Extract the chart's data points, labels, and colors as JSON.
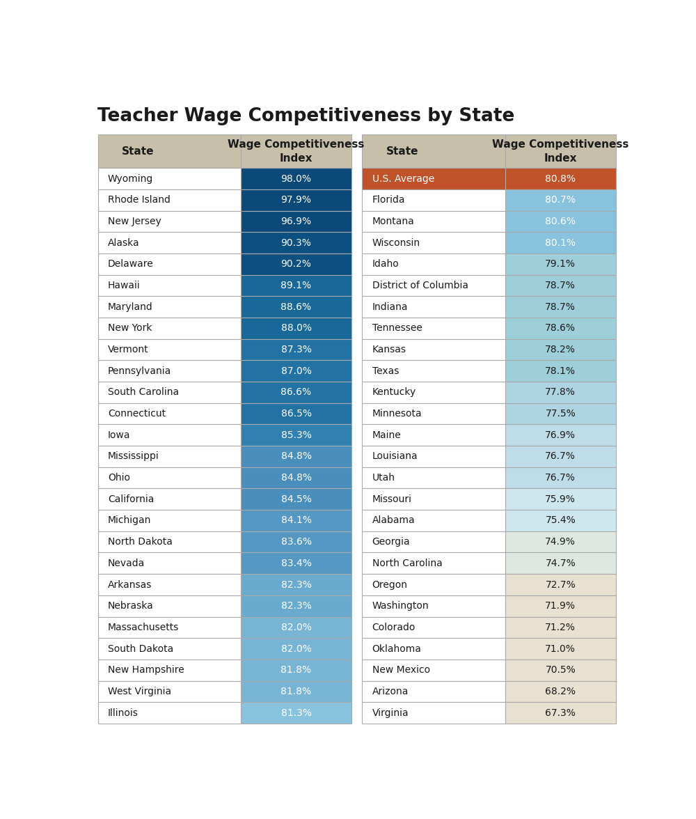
{
  "title": "Teacher Wage Competitiveness by State",
  "left_states": [
    "Wyoming",
    "Rhode Island",
    "New Jersey",
    "Alaska",
    "Delaware",
    "Hawaii",
    "Maryland",
    "New York",
    "Vermont",
    "Pennsylvania",
    "South Carolina",
    "Connecticut",
    "Iowa",
    "Mississippi",
    "Ohio",
    "California",
    "Michigan",
    "North Dakota",
    "Nevada",
    "Arkansas",
    "Nebraska",
    "Massachusetts",
    "South Dakota",
    "New Hampshire",
    "West Virginia",
    "Illinois"
  ],
  "left_values": [
    "98.0%",
    "97.9%",
    "96.9%",
    "90.3%",
    "90.2%",
    "89.1%",
    "88.6%",
    "88.0%",
    "87.3%",
    "87.0%",
    "86.6%",
    "86.5%",
    "85.3%",
    "84.8%",
    "84.8%",
    "84.5%",
    "84.1%",
    "83.6%",
    "83.4%",
    "82.3%",
    "82.3%",
    "82.0%",
    "82.0%",
    "81.8%",
    "81.8%",
    "81.3%"
  ],
  "right_states": [
    "U.S. Average",
    "Florida",
    "Montana",
    "Wisconsin",
    "Idaho",
    "District of Columbia",
    "Indiana",
    "Tennessee",
    "Kansas",
    "Texas",
    "Kentucky",
    "Minnesota",
    "Maine",
    "Louisiana",
    "Utah",
    "Missouri",
    "Alabama",
    "Georgia",
    "North Carolina",
    "Oregon",
    "Washington",
    "Colorado",
    "Oklahoma",
    "New Mexico",
    "Arizona",
    "Virginia"
  ],
  "right_values": [
    "80.8%",
    "80.7%",
    "80.6%",
    "80.1%",
    "79.1%",
    "78.7%",
    "78.7%",
    "78.6%",
    "78.2%",
    "78.1%",
    "77.8%",
    "77.5%",
    "76.9%",
    "76.7%",
    "76.7%",
    "75.9%",
    "75.4%",
    "74.9%",
    "74.7%",
    "72.7%",
    "71.9%",
    "71.2%",
    "71.0%",
    "70.5%",
    "68.2%",
    "67.3%"
  ],
  "header_bg": "#c8bfaa",
  "header_text": "#1a1a1a",
  "title_color": "#1a1a1a",
  "us_avg_bg": "#c0522a",
  "us_avg_text": "#ffffff",
  "value_colors_left": [
    "#0b4a78",
    "#0b4a78",
    "#0b4a78",
    "#0b5080",
    "#0b5080",
    "#1a6898",
    "#1a6898",
    "#1a6898",
    "#2272a4",
    "#2272a4",
    "#2272a4",
    "#2272a4",
    "#3080b0",
    "#4a8fbc",
    "#4a8fbc",
    "#4a8fbc",
    "#5598c4",
    "#5598c4",
    "#5598c4",
    "#6aaace",
    "#6aaace",
    "#78b5d5",
    "#78b5d5",
    "#78b5d5",
    "#78b5d5",
    "#88c2dc"
  ],
  "value_text_colors_left": [
    "#ffffff",
    "#ffffff",
    "#ffffff",
    "#ffffff",
    "#ffffff",
    "#ffffff",
    "#ffffff",
    "#ffffff",
    "#ffffff",
    "#ffffff",
    "#ffffff",
    "#ffffff",
    "#ffffff",
    "#ffffff",
    "#ffffff",
    "#ffffff",
    "#ffffff",
    "#ffffff",
    "#ffffff",
    "#ffffff",
    "#ffffff",
    "#ffffff",
    "#ffffff",
    "#ffffff",
    "#ffffff",
    "#ffffff"
  ],
  "value_colors_right": [
    "#c0522a",
    "#88c2dc",
    "#88c2dc",
    "#88c2dc",
    "#9eceda",
    "#9eceda",
    "#9eceda",
    "#9eceda",
    "#9eceda",
    "#9eceda",
    "#aed4e2",
    "#aed4e2",
    "#bedde8",
    "#bedde8",
    "#bedde8",
    "#cee6ee",
    "#cee6ee",
    "#dee8e0",
    "#dee8e0",
    "#e8e0d0",
    "#e8e0d0",
    "#e8e0d0",
    "#e8e0d0",
    "#e8e0d0",
    "#e8e0d0",
    "#e8e0d0"
  ],
  "value_text_colors_right": [
    "#ffffff",
    "#ffffff",
    "#ffffff",
    "#ffffff",
    "#1a1a1a",
    "#1a1a1a",
    "#1a1a1a",
    "#1a1a1a",
    "#1a1a1a",
    "#1a1a1a",
    "#1a1a1a",
    "#1a1a1a",
    "#1a1a1a",
    "#1a1a1a",
    "#1a1a1a",
    "#1a1a1a",
    "#1a1a1a",
    "#1a1a1a",
    "#1a1a1a",
    "#1a1a1a",
    "#1a1a1a",
    "#1a1a1a",
    "#1a1a1a",
    "#1a1a1a",
    "#1a1a1a",
    "#1a1a1a"
  ],
  "border_color": "#aaaaaa",
  "bg_color": "#ffffff"
}
